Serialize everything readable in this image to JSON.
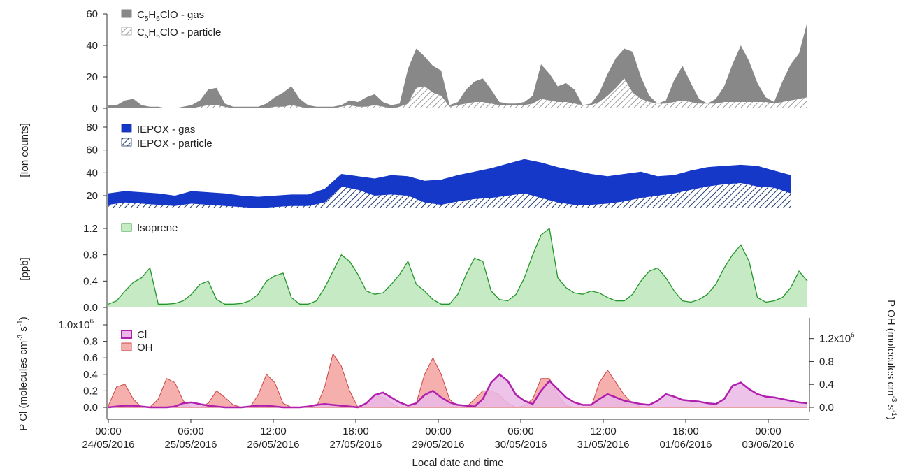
{
  "figure": {
    "xlabel": "Local date and time",
    "xticks": [
      {
        "time": "00:00",
        "date": "24/05/2016"
      },
      {
        "time": "06:00",
        "date": "25/05/2016"
      },
      {
        "time": "12:00",
        "date": "26/05/2016"
      },
      {
        "time": "18:00",
        "date": "27/05/2016"
      },
      {
        "time": "00:00",
        "date": "29/05/2016"
      },
      {
        "time": "06:00",
        "date": "30/05/2016"
      },
      {
        "time": "12:00",
        "date": "31/05/2016"
      },
      {
        "time": "18:00",
        "date": "01/06/2016"
      },
      {
        "time": "00:00",
        "date": "03/06/2016"
      }
    ],
    "ion_ylabel": "[Ion counts]",
    "ppb_ylabel": "[ppb]",
    "pcl_ylabel": "P Cl (molecules cm",
    "pcl_ylabel_sup": "-3",
    "pcl_ylabel_mid": "s",
    "pcl_ylabel_sup2": "-1",
    "pcl_ylabel_end": ")",
    "poh_ylabel": "P OH (molecules cm",
    "poh_ylabel_sup": "-3",
    "poh_ylabel_mid": "s",
    "poh_ylabel_sup2": "-1",
    "poh_ylabel_end": ")"
  },
  "chart_data": [
    {
      "type": "area",
      "panel": "C5H6ClO",
      "ylim": [
        0,
        60
      ],
      "yticks": [
        "0",
        "20",
        "40",
        "60"
      ],
      "legend": [
        {
          "name": "C5H6ClO - gas",
          "base": "C",
          "s1": "5",
          "mid": "H",
          "s2": "6",
          "end": "ClO - gas"
        },
        {
          "name": "C5H6ClO - particle",
          "base": "C",
          "s1": "5",
          "mid": "H",
          "s2": "6",
          "end": "ClO - particle"
        }
      ],
      "x": [
        0,
        3,
        6,
        9,
        12,
        15,
        18,
        21,
        24,
        27,
        30,
        33,
        36,
        39,
        42,
        45,
        48,
        51,
        54,
        57,
        60,
        63,
        66,
        69,
        72,
        75,
        78,
        81,
        84,
        87,
        90,
        93,
        96,
        99,
        102,
        105,
        108,
        111,
        114,
        117,
        120,
        123,
        126,
        129,
        132,
        135,
        138,
        141,
        144,
        147,
        150,
        153,
        156,
        159,
        162,
        165,
        168,
        171,
        174,
        177,
        180,
        183,
        186,
        189,
        192,
        195,
        198,
        201,
        204,
        207,
        210,
        213,
        216,
        219,
        222,
        225,
        228,
        231,
        234,
        237,
        240,
        243,
        246,
        249,
        252
      ],
      "series": [
        {
          "name": "C5H6ClO - gas",
          "values": [
            2,
            2,
            5,
            6,
            2,
            1,
            1,
            0,
            0,
            1,
            2,
            5,
            12,
            13,
            3,
            1,
            1,
            1,
            1,
            3,
            7,
            10,
            14,
            6,
            2,
            1,
            1,
            1,
            2,
            5,
            4,
            7,
            9,
            4,
            2,
            3,
            25,
            38,
            33,
            27,
            24,
            2,
            4,
            12,
            17,
            19,
            12,
            4,
            3,
            3,
            4,
            8,
            28,
            22,
            14,
            16,
            12,
            2,
            3,
            10,
            22,
            32,
            38,
            36,
            20,
            8,
            3,
            5,
            18,
            27,
            16,
            6,
            3,
            6,
            14,
            28,
            40,
            30,
            16,
            7,
            4,
            17,
            28,
            35,
            55
          ]
        },
        {
          "name": "C5H6ClO - particle",
          "values": [
            0,
            0,
            0,
            0,
            0,
            0,
            0,
            0,
            0,
            0,
            0,
            1,
            2,
            2,
            1,
            0,
            0,
            0,
            0,
            0,
            1,
            1,
            2,
            1,
            0,
            0,
            0,
            0,
            1,
            2,
            1,
            1,
            2,
            1,
            0,
            1,
            3,
            13,
            14,
            10,
            8,
            1,
            2,
            3,
            4,
            4,
            3,
            2,
            2,
            2,
            2,
            3,
            6,
            5,
            4,
            4,
            3,
            2,
            2,
            4,
            8,
            13,
            19,
            10,
            6,
            4,
            3,
            3,
            4,
            5,
            4,
            3,
            3,
            3,
            4,
            4,
            4,
            4,
            4,
            4,
            3,
            4,
            5,
            6,
            7
          ]
        }
      ]
    },
    {
      "type": "area",
      "panel": "IEPOX",
      "ylim": [
        0,
        80
      ],
      "yticks": [
        "20",
        "40",
        "60",
        "80"
      ],
      "legend": [
        {
          "name": "IEPOX - gas"
        },
        {
          "name": "IEPOX - particle"
        }
      ],
      "x": [
        0,
        6,
        12,
        18,
        24,
        30,
        36,
        42,
        48,
        54,
        60,
        66,
        72,
        78,
        84,
        90,
        96,
        102,
        108,
        114,
        120,
        126,
        132,
        138,
        144,
        150,
        156,
        162,
        168,
        174,
        180,
        186,
        192,
        198,
        204,
        210,
        216,
        222,
        228,
        234,
        240,
        246
      ],
      "series": [
        {
          "name": "IEPOX - gas",
          "values": [
            22,
            24,
            23,
            22,
            20,
            24,
            23,
            22,
            20,
            19,
            20,
            21,
            21,
            26,
            39,
            37,
            35,
            38,
            37,
            33,
            34,
            38,
            41,
            44,
            48,
            52,
            49,
            45,
            42,
            39,
            37,
            39,
            41,
            37,
            38,
            42,
            45,
            46,
            47,
            46,
            42,
            38
          ]
        },
        {
          "name": "IEPOX - particle",
          "values": [
            12,
            14,
            13,
            12,
            11,
            13,
            12,
            11,
            10,
            9,
            10,
            11,
            11,
            14,
            28,
            25,
            20,
            21,
            20,
            14,
            12,
            15,
            17,
            18,
            20,
            22,
            18,
            14,
            12,
            12,
            13,
            15,
            18,
            20,
            22,
            25,
            28,
            30,
            31,
            28,
            27,
            22
          ]
        }
      ]
    },
    {
      "type": "area",
      "panel": "Isoprene",
      "ylim": [
        0,
        1.4
      ],
      "yticks": [
        "0.0",
        "0.4",
        "0.8",
        "1.2"
      ],
      "legend": [
        {
          "name": "Isoprene"
        }
      ],
      "x": [
        0,
        3,
        6,
        9,
        12,
        15,
        18,
        21,
        24,
        27,
        30,
        33,
        36,
        39,
        42,
        45,
        48,
        51,
        54,
        57,
        60,
        63,
        66,
        69,
        72,
        75,
        78,
        81,
        84,
        87,
        90,
        93,
        96,
        99,
        102,
        105,
        108,
        111,
        114,
        117,
        120,
        123,
        126,
        129,
        132,
        135,
        138,
        141,
        144,
        147,
        150,
        153,
        156,
        159,
        162,
        165,
        168,
        171,
        174,
        177,
        180,
        183,
        186,
        189,
        192,
        195,
        198,
        201,
        204,
        207,
        210,
        213,
        216,
        219,
        222,
        225,
        228,
        231,
        234,
        237,
        240,
        243,
        246,
        249,
        252
      ],
      "series": [
        {
          "name": "Isoprene",
          "values": [
            0.05,
            0.1,
            0.25,
            0.38,
            0.45,
            0.6,
            0.05,
            0.05,
            0.06,
            0.1,
            0.2,
            0.35,
            0.4,
            0.12,
            0.05,
            0.05,
            0.06,
            0.1,
            0.2,
            0.4,
            0.48,
            0.52,
            0.15,
            0.05,
            0.05,
            0.1,
            0.3,
            0.55,
            0.8,
            0.7,
            0.5,
            0.25,
            0.2,
            0.22,
            0.35,
            0.5,
            0.7,
            0.35,
            0.25,
            0.12,
            0.05,
            0.05,
            0.2,
            0.5,
            0.75,
            0.7,
            0.25,
            0.12,
            0.1,
            0.2,
            0.45,
            0.8,
            1.1,
            1.2,
            0.45,
            0.3,
            0.22,
            0.2,
            0.25,
            0.22,
            0.15,
            0.1,
            0.1,
            0.2,
            0.4,
            0.55,
            0.6,
            0.45,
            0.25,
            0.1,
            0.08,
            0.12,
            0.2,
            0.35,
            0.6,
            0.8,
            0.95,
            0.7,
            0.15,
            0.08,
            0.1,
            0.15,
            0.3,
            0.55,
            0.4
          ]
        }
      ]
    },
    {
      "type": "area",
      "panel": "Production rates",
      "ylim_left": [
        0,
        1.0
      ],
      "yticks_left": [
        "0.0",
        "0.2",
        "0.4",
        "0.6",
        "0.8",
        "1.0x10"
      ],
      "ytick_left_exp": "6",
      "ylim_right": [
        0,
        1.44
      ],
      "yticks_right": [
        "0.0",
        "0.4",
        "0.8",
        "1.2x10"
      ],
      "ytick_right_exp": "6",
      "legend": [
        {
          "name": "Cl"
        },
        {
          "name": "OH"
        }
      ],
      "x": [
        0,
        3,
        6,
        9,
        12,
        15,
        18,
        21,
        24,
        27,
        30,
        33,
        36,
        39,
        42,
        45,
        48,
        51,
        54,
        57,
        60,
        63,
        66,
        69,
        72,
        75,
        78,
        81,
        84,
        87,
        90,
        93,
        96,
        99,
        102,
        105,
        108,
        111,
        114,
        117,
        120,
        123,
        126,
        129,
        132,
        135,
        138,
        141,
        144,
        147,
        150,
        153,
        156,
        159,
        162,
        165,
        168,
        171,
        174,
        177,
        180,
        183,
        186,
        189,
        192,
        195,
        198,
        201,
        204,
        207,
        210,
        213,
        216,
        219,
        222,
        225,
        228,
        231,
        234,
        237,
        240,
        243,
        246,
        249,
        252
      ],
      "series": [
        {
          "name": "Cl",
          "axis": "left",
          "values": [
            0.0,
            0.01,
            0.02,
            0.02,
            0.01,
            0.0,
            0.0,
            0.0,
            0.01,
            0.05,
            0.06,
            0.04,
            0.02,
            0.01,
            0.0,
            0.0,
            0.0,
            0.01,
            0.02,
            0.02,
            0.01,
            0.0,
            0.0,
            0.0,
            0.01,
            0.03,
            0.04,
            0.03,
            0.02,
            0.01,
            0.0,
            0.05,
            0.15,
            0.18,
            0.12,
            0.06,
            0.02,
            0.05,
            0.15,
            0.2,
            0.12,
            0.06,
            0.03,
            0.02,
            0.01,
            0.1,
            0.3,
            0.4,
            0.32,
            0.15,
            0.08,
            0.04,
            0.2,
            0.32,
            0.22,
            0.12,
            0.06,
            0.03,
            0.03,
            0.1,
            0.16,
            0.12,
            0.08,
            0.06,
            0.04,
            0.03,
            0.08,
            0.16,
            0.13,
            0.09,
            0.08,
            0.07,
            0.05,
            0.04,
            0.1,
            0.26,
            0.3,
            0.22,
            0.16,
            0.13,
            0.12,
            0.1,
            0.08,
            0.06,
            0.05
          ]
        },
        {
          "name": "OH",
          "axis": "left",
          "values": [
            0.02,
            0.25,
            0.28,
            0.1,
            0.0,
            0.0,
            0.1,
            0.35,
            0.3,
            0.08,
            0.0,
            0.0,
            0.05,
            0.2,
            0.12,
            0.03,
            0.0,
            0.0,
            0.15,
            0.4,
            0.3,
            0.05,
            0.0,
            0.0,
            0.0,
            0.0,
            0.25,
            0.65,
            0.5,
            0.2,
            0.0,
            0.05,
            0.15,
            0.12,
            0.05,
            0.0,
            0.0,
            0.05,
            0.4,
            0.6,
            0.4,
            0.1,
            0.0,
            0.0,
            0.1,
            0.2,
            0.2,
            0.15,
            0.05,
            0.0,
            0.02,
            0.1,
            0.35,
            0.35,
            0.15,
            0.02,
            0.0,
            0.0,
            0.0,
            0.3,
            0.45,
            0.3,
            0.15,
            0.05,
            0.0,
            0.0,
            0.0,
            0.0,
            0.0,
            0.0,
            0.0,
            0.0,
            0.0,
            0.0,
            0.0,
            0.0,
            0.0,
            0.0,
            0.0,
            0.0,
            0.0,
            0.0,
            0.0,
            0.0,
            0.0
          ]
        }
      ]
    }
  ]
}
